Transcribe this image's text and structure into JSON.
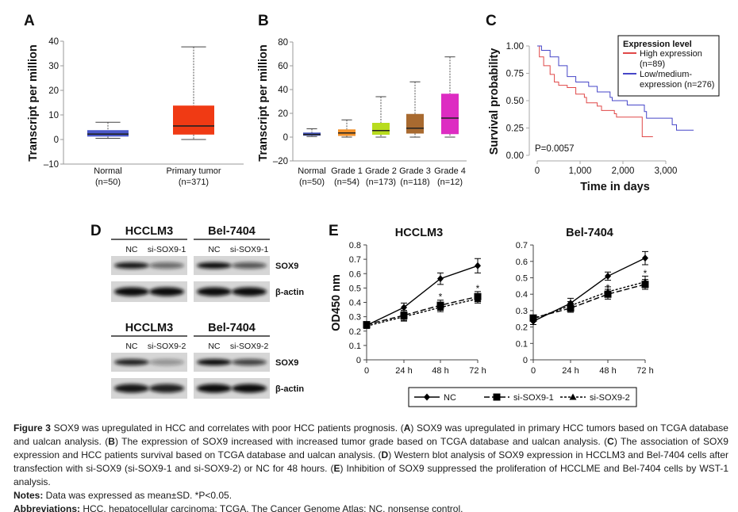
{
  "panel_labels": [
    "A",
    "B",
    "C",
    "D",
    "E"
  ],
  "chart_data": [
    {
      "id": "A",
      "type": "box",
      "ylabel": "Transcript per million",
      "ylim": [
        -10,
        40
      ],
      "yticks": [
        "–10",
        "0",
        "10",
        "20",
        "30",
        "40"
      ],
      "ytick_values": [
        -10,
        0,
        10,
        20,
        30,
        40
      ],
      "categories": [
        {
          "name": "Normal",
          "n": "(n=50)",
          "color": "#4a57c8",
          "min": 0.5,
          "q1": 1.2,
          "median": 2.2,
          "q3": 3.8,
          "max": 7
        },
        {
          "name": "Primary tumor",
          "n": "(n=371)",
          "color": "#f03a14",
          "min": 0,
          "q1": 2,
          "median": 5.5,
          "q3": 13.8,
          "max": 37.7
        }
      ]
    },
    {
      "id": "B",
      "type": "box",
      "ylabel": "Transcript per million",
      "ylim": [
        -20,
        80
      ],
      "yticks": [
        "–20",
        "0",
        "20",
        "40",
        "60",
        "80"
      ],
      "ytick_values": [
        -20,
        0,
        20,
        40,
        60,
        80
      ],
      "categories": [
        {
          "name": "Normal",
          "n": "(n=50)",
          "color": "#3d4db8",
          "min": 0.5,
          "q1": 1.2,
          "median": 2.2,
          "q3": 3.8,
          "max": 7
        },
        {
          "name": "Grade 1",
          "n": "(n=54)",
          "color": "#f3922b",
          "min": 0,
          "q1": 1,
          "median": 3.5,
          "q3": 6.5,
          "max": 14.5
        },
        {
          "name": "Grade 2",
          "n": "(n=173)",
          "color": "#b8dc1e",
          "min": 0,
          "q1": 2,
          "median": 5.5,
          "q3": 12,
          "max": 34
        },
        {
          "name": "Grade 3",
          "n": "(n=118)",
          "color": "#a86a30",
          "min": 0,
          "q1": 3,
          "median": 7.5,
          "q3": 19.5,
          "max": 46.5
        },
        {
          "name": "Grade 4",
          "n": "(n=12)",
          "color": "#dd2cc2",
          "min": 0,
          "q1": 2.5,
          "median": 16,
          "q3": 36.5,
          "max": 67.5
        }
      ]
    },
    {
      "id": "C",
      "type": "line",
      "subtype": "kaplan-meier",
      "xlabel": "Time in days",
      "ylabel": "Survival probability",
      "xlim": [
        0,
        3700
      ],
      "ylim": [
        0,
        1
      ],
      "xticks": [
        "0",
        "1,000",
        "2,000",
        "3,000"
      ],
      "xtick_values": [
        0,
        1000,
        2000,
        3000
      ],
      "yticks": [
        "0.00",
        "0.25",
        "0.50",
        "0.75",
        "1.00"
      ],
      "ytick_values": [
        0,
        0.25,
        0.5,
        0.75,
        1
      ],
      "legend_title": "Expression level",
      "legend_position": "top-right",
      "annotation": "P=0.0057",
      "series": [
        {
          "name": "High expression",
          "name2": "(n=89)",
          "color": "#e04848",
          "points": [
            [
              0,
              1
            ],
            [
              50,
              0.9
            ],
            [
              150,
              0.82
            ],
            [
              300,
              0.74
            ],
            [
              400,
              0.67
            ],
            [
              500,
              0.64
            ],
            [
              700,
              0.62
            ],
            [
              900,
              0.56
            ],
            [
              1100,
              0.53
            ],
            [
              1150,
              0.48
            ],
            [
              1400,
              0.45
            ],
            [
              1500,
              0.41
            ],
            [
              1800,
              0.38
            ],
            [
              1850,
              0.35
            ],
            [
              2400,
              0.35
            ],
            [
              2450,
              0.17
            ],
            [
              2700,
              0.17
            ]
          ]
        },
        {
          "name": "Low/medium-",
          "name2": "expression (n=276)",
          "color": "#4646c8",
          "points": [
            [
              0,
              1
            ],
            [
              100,
              0.96
            ],
            [
              300,
              0.9
            ],
            [
              500,
              0.82
            ],
            [
              700,
              0.72
            ],
            [
              900,
              0.67
            ],
            [
              1200,
              0.63
            ],
            [
              1400,
              0.58
            ],
            [
              1700,
              0.53
            ],
            [
              1750,
              0.5
            ],
            [
              2050,
              0.5
            ],
            [
              2100,
              0.46
            ],
            [
              2450,
              0.46
            ],
            [
              2500,
              0.4
            ],
            [
              2550,
              0.34
            ],
            [
              3100,
              0.34
            ],
            [
              3150,
              0.28
            ],
            [
              3250,
              0.23
            ],
            [
              3650,
              0.23
            ]
          ]
        }
      ]
    },
    {
      "id": "E1",
      "type": "line",
      "title": "HCCLM3",
      "ylabel": "OD450 nm",
      "categories": [
        "0",
        "24 h",
        "48 h",
        "72 h"
      ],
      "ylim": [
        0,
        0.8
      ],
      "yticks": [
        "0",
        "0.1",
        "0.2",
        "0.3",
        "0.4",
        "0.5",
        "0.6",
        "0.7",
        "0.8"
      ],
      "ytick_values": [
        0,
        0.1,
        0.2,
        0.3,
        0.4,
        0.5,
        0.6,
        0.7,
        0.8
      ],
      "significance": [
        {
          "x": 2,
          "label": "*",
          "y": 0.46
        },
        {
          "x": 3,
          "label": "*",
          "y": 0.52
        }
      ],
      "series": [
        {
          "name": "NC",
          "marker": "diamond",
          "dash": "solid",
          "values": [
            0.24,
            0.365,
            0.565,
            0.655
          ],
          "errors": [
            0.02,
            0.03,
            0.04,
            0.05
          ]
        },
        {
          "name": "si-SOX9-1",
          "marker": "square",
          "dash": "long",
          "values": [
            0.245,
            0.31,
            0.38,
            0.44
          ],
          "errors": [
            0.015,
            0.035,
            0.035,
            0.035
          ]
        },
        {
          "name": "si-SOX9-2",
          "marker": "triangle",
          "dash": "short",
          "values": [
            0.235,
            0.3,
            0.365,
            0.425
          ],
          "errors": [
            0.015,
            0.03,
            0.03,
            0.03
          ]
        }
      ]
    },
    {
      "id": "E2",
      "type": "line",
      "title": "Bel-7404",
      "categories": [
        "0",
        "24 h",
        "48 h",
        "72 h"
      ],
      "ylim": [
        0,
        0.7
      ],
      "yticks": [
        "0",
        "0.1",
        "0.2",
        "0.3",
        "0.4",
        "0.5",
        "0.6",
        "0.7"
      ],
      "ytick_values": [
        0,
        0.1,
        0.2,
        0.3,
        0.4,
        0.5,
        0.6,
        0.7
      ],
      "significance": [
        {
          "x": 2,
          "label": "*",
          "y": 0.46
        },
        {
          "x": 3,
          "label": "*",
          "y": 0.545
        }
      ],
      "series": [
        {
          "name": "NC",
          "marker": "diamond",
          "dash": "solid",
          "values": [
            0.235,
            0.345,
            0.51,
            0.62
          ],
          "errors": [
            0.02,
            0.03,
            0.025,
            0.04
          ]
        },
        {
          "name": "si-SOX9-1",
          "marker": "square",
          "dash": "long",
          "values": [
            0.255,
            0.315,
            0.4,
            0.46
          ],
          "errors": [
            0.015,
            0.025,
            0.03,
            0.03
          ]
        },
        {
          "name": "si-SOX9-2",
          "marker": "triangle",
          "dash": "short",
          "values": [
            0.25,
            0.33,
            0.415,
            0.475
          ],
          "errors": [
            0.015,
            0.025,
            0.03,
            0.035
          ]
        }
      ]
    }
  ],
  "legend_E": [
    "NC",
    "si-SOX9-1",
    "si-SOX9-2"
  ],
  "western_blot": {
    "rows": [
      {
        "groups": [
          {
            "title": "HCCLM3",
            "lanes": [
              "NC",
              "si-SOX9-1"
            ],
            "sox9_intensity": [
              0.95,
              0.55
            ],
            "actin_intensity": [
              1,
              1
            ]
          },
          {
            "title": "Bel-7404",
            "lanes": [
              "NC",
              "si-SOX9-1"
            ],
            "sox9_intensity": [
              1,
              0.65
            ],
            "actin_intensity": [
              1,
              1
            ]
          }
        ]
      },
      {
        "groups": [
          {
            "title": "HCCLM3",
            "lanes": [
              "NC",
              "si-SOX9-2"
            ],
            "sox9_intensity": [
              0.9,
              0.35
            ],
            "actin_intensity": [
              0.95,
              0.9
            ]
          },
          {
            "title": "Bel-7404",
            "lanes": [
              "NC",
              "si-SOX9-2"
            ],
            "sox9_intensity": [
              1,
              0.75
            ],
            "actin_intensity": [
              1,
              1
            ]
          }
        ]
      }
    ],
    "band_labels": [
      "SOX9",
      "β-actin"
    ]
  },
  "caption": {
    "main": [
      {
        "text": "Figure 3",
        "bold": true
      },
      {
        "text": " SOX9 was upregulated in HCC and correlates with poor HCC patients prognosis. (",
        "bold": false
      },
      {
        "text": "A",
        "bold": true
      },
      {
        "text": ") SOX9 was upregulated in primary HCC tumors based on TCGA database and ualcan analysis. (",
        "bold": false
      },
      {
        "text": "B",
        "bold": true
      },
      {
        "text": ") The expression of SOX9 increased with increased tumor grade based on TCGA database and ualcan analysis. (",
        "bold": false
      },
      {
        "text": "C",
        "bold": true
      },
      {
        "text": ") The association of SOX9 expression and HCC patients survival based on TCGA database and ualcan analysis. (",
        "bold": false
      },
      {
        "text": "D",
        "bold": true
      },
      {
        "text": ") Western blot analysis of SOX9 expression in HCCLM3 and Bel-7404 cells after transfection with si-SOX9 (si-SOX9-1 and si-SOX9-2) or NC for 48 hours. (",
        "bold": false
      },
      {
        "text": "E",
        "bold": true
      },
      {
        "text": ") Inhibition of SOX9 suppressed the proliferation of HCCLME and Bel-7404 cells by WST-1 analysis.",
        "bold": false
      }
    ],
    "notes_label": "Notes:",
    "notes_text": " Data was expressed as mean±SD. *P<0.05.",
    "abbrev_label": "Abbreviations:",
    "abbrev_text": " HCC, hepatocellular carcinoma; TCGA, The Cancer Genome Atlas; NC, nonsense control."
  }
}
